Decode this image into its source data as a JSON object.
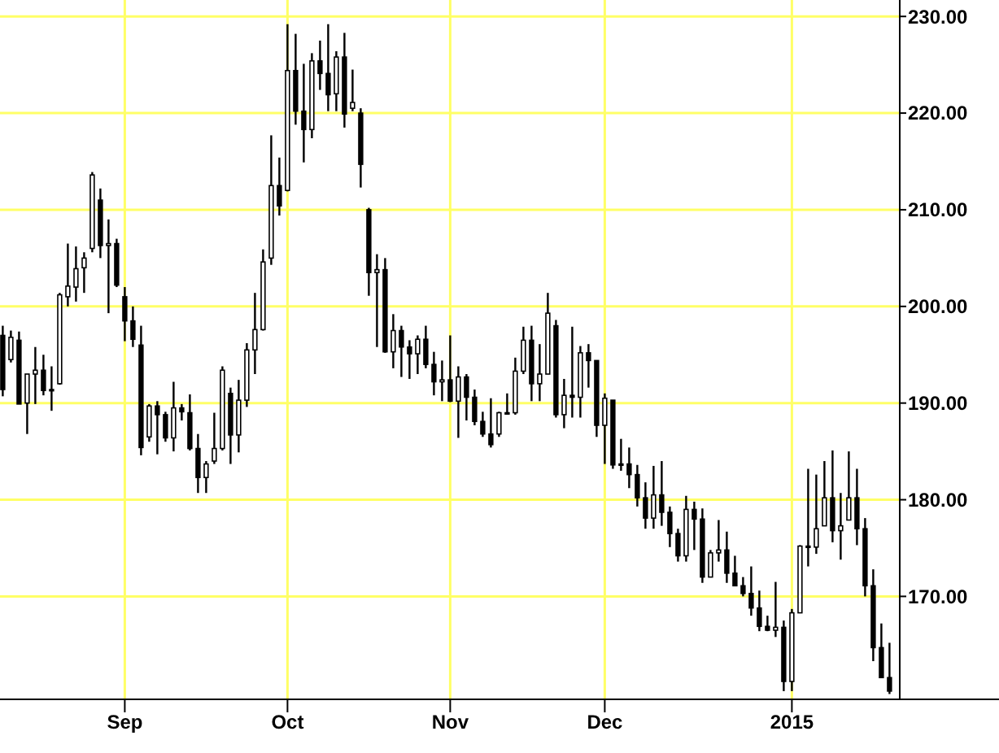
{
  "chart_data": {
    "type": "candlestick",
    "color": "#000000",
    "grid": true,
    "categories": [
      null,
      null,
      null,
      null,
      null,
      null,
      null,
      null,
      null,
      null,
      null,
      null,
      null,
      null,
      null,
      "Sep",
      null,
      null,
      null,
      null,
      null,
      null,
      null,
      null,
      null,
      null,
      null,
      null,
      null,
      null,
      null,
      null,
      null,
      null,
      null,
      "Oct",
      null,
      null,
      null,
      null,
      null,
      null,
      null,
      null,
      null,
      null,
      null,
      null,
      null,
      null,
      null,
      null,
      null,
      null,
      null,
      "Nov",
      null,
      null,
      null,
      null,
      null,
      null,
      null,
      null,
      null,
      null,
      null,
      null,
      null,
      null,
      null,
      null,
      null,
      null,
      "Dec",
      null,
      null,
      null,
      null,
      null,
      null,
      null,
      null,
      null,
      null,
      null,
      null,
      null,
      null,
      null,
      null,
      null,
      null,
      null,
      null,
      null,
      null,
      "2015",
      null,
      null,
      null,
      null,
      null,
      null,
      null,
      null,
      null,
      null,
      null,
      null
    ],
    "ohlc": [
      [
        197,
        198.0,
        190.7,
        191.4
      ],
      [
        194.5,
        197.5,
        194.2,
        196.8
      ],
      [
        196.5,
        197.4,
        189.9,
        189.9
      ],
      [
        190,
        193.0,
        186.8,
        193.0
      ],
      [
        193,
        195.8,
        189.9,
        193.4
      ],
      [
        193.4,
        195.0,
        190.8,
        191.3
      ],
      [
        191.3,
        193.8,
        189.2,
        191.4
      ],
      [
        192,
        201.4,
        191.9,
        201.2
      ],
      [
        201,
        206.5,
        200.0,
        202.1
      ],
      [
        202,
        206.2,
        200.5,
        203.9
      ],
      [
        204,
        205.6,
        201.4,
        205.0
      ],
      [
        206,
        213.9,
        205.6,
        213.6
      ],
      [
        211,
        212.2,
        205.0,
        206.3
      ],
      [
        206.3,
        209.0,
        199.3,
        206.5
      ],
      [
        206.5,
        207.0,
        202.0,
        202.2
      ],
      [
        201,
        202.0,
        196.4,
        198.5
      ],
      [
        198.5,
        200.0,
        195.8,
        196.6
      ],
      [
        196,
        198.0,
        184.6,
        185.4
      ],
      [
        186.5,
        189.9,
        186.0,
        189.7
      ],
      [
        189.7,
        190.2,
        184.7,
        188.8
      ],
      [
        188.8,
        189.1,
        186.0,
        186.4
      ],
      [
        186.4,
        192.2,
        185.0,
        189.5
      ],
      [
        189.5,
        189.9,
        188.2,
        189.1
      ],
      [
        189,
        190.9,
        185.1,
        185.3
      ],
      [
        185.3,
        186.8,
        180.7,
        182.3
      ],
      [
        182.3,
        184.0,
        180.7,
        183.7
      ],
      [
        184,
        189.0,
        183.7,
        185.3
      ],
      [
        185.3,
        193.8,
        185.1,
        193.4
      ],
      [
        191,
        191.6,
        183.7,
        186.7
      ],
      [
        186.7,
        192.4,
        184.9,
        190.3
      ],
      [
        190.3,
        196.2,
        189.6,
        195.5
      ],
      [
        195.5,
        201.4,
        193.0,
        197.6
      ],
      [
        197.6,
        205.9,
        197.5,
        204.6
      ],
      [
        205,
        217.7,
        204.3,
        212.5
      ],
      [
        212.5,
        215.4,
        209.4,
        210.4
      ],
      [
        212,
        229.2,
        211.9,
        224.4
      ],
      [
        224.4,
        228.2,
        218.8,
        220.2
      ],
      [
        220.2,
        225.1,
        214.9,
        218.3
      ],
      [
        218.3,
        226.2,
        217.4,
        225.4
      ],
      [
        225.4,
        227.5,
        222.4,
        224.1
      ],
      [
        224.1,
        229.2,
        220.2,
        221.9
      ],
      [
        222,
        226.4,
        220.2,
        225.8
      ],
      [
        225.8,
        228.3,
        218.5,
        219.9
      ],
      [
        220.5,
        224.5,
        220.2,
        221.1
      ],
      [
        220,
        220.5,
        212.3,
        214.7
      ],
      [
        210,
        210.2,
        201.1,
        203.5
      ],
      [
        203.5,
        205.4,
        195.8,
        203.8
      ],
      [
        203.8,
        205.0,
        195.2,
        195.3
      ],
      [
        195.3,
        199.2,
        193.6,
        197.5
      ],
      [
        197.5,
        198.0,
        192.7,
        195.8
      ],
      [
        195.8,
        196.5,
        192.5,
        195.1
      ],
      [
        195.1,
        197.0,
        193.0,
        196.6
      ],
      [
        196.6,
        198.0,
        193.6,
        194.0
      ],
      [
        194,
        195.3,
        190.8,
        192.2
      ],
      [
        192.2,
        194.4,
        190.2,
        192.4
      ],
      [
        192.4,
        197.0,
        190.1,
        190.2
      ],
      [
        190.2,
        193.8,
        186.4,
        192.7
      ],
      [
        192.7,
        193.0,
        188.2,
        190.6
      ],
      [
        190.6,
        191.4,
        187.7,
        188.1
      ],
      [
        188.1,
        189.1,
        186.5,
        186.8
      ],
      [
        186.8,
        190.5,
        185.4,
        185.7
      ],
      [
        186.8,
        189.1,
        186.5,
        189.0
      ],
      [
        189.0,
        191.0,
        188.8,
        189.0
      ],
      [
        189,
        194.7,
        188.8,
        193.3
      ],
      [
        193.3,
        197.9,
        193.0,
        196.5
      ],
      [
        196.5,
        198.0,
        190.2,
        192.0
      ],
      [
        192,
        196.1,
        190.2,
        193.0
      ],
      [
        193,
        201.4,
        193.0,
        199.3
      ],
      [
        198,
        198.6,
        188.5,
        188.8
      ],
      [
        188.8,
        192.5,
        187.4,
        190.8
      ],
      [
        190.8,
        197.9,
        188.5,
        190.6
      ],
      [
        190.6,
        195.9,
        188.5,
        195.2
      ],
      [
        195.2,
        196.1,
        191.6,
        194.4
      ],
      [
        194.4,
        194.4,
        186.5,
        187.7
      ],
      [
        187.7,
        191.0,
        183.7,
        190.5
      ],
      [
        190.3,
        190.3,
        183.2,
        183.6
      ],
      [
        183.6,
        186.3,
        183.0,
        183.7
      ],
      [
        183.7,
        185.4,
        181.2,
        182.6
      ],
      [
        182.6,
        183.6,
        179.3,
        180.2
      ],
      [
        180.2,
        181.8,
        177.0,
        178.1
      ],
      [
        178.1,
        183.5,
        177.0,
        180.5
      ],
      [
        180.5,
        184.0,
        177.3,
        178.7
      ],
      [
        178.7,
        179.3,
        175.1,
        176.5
      ],
      [
        176.5,
        177.0,
        173.6,
        174.2
      ],
      [
        174.2,
        180.4,
        173.6,
        179.0
      ],
      [
        179,
        179.8,
        174.8,
        178.0
      ],
      [
        178,
        179.1,
        171.4,
        172.0
      ],
      [
        172,
        174.8,
        172.0,
        174.5
      ],
      [
        174.5,
        177.9,
        173.6,
        174.8
      ],
      [
        174.8,
        176.7,
        171.4,
        172.4
      ],
      [
        172.4,
        174.2,
        171.1,
        171.1
      ],
      [
        171.1,
        172.0,
        170.0,
        170.3
      ],
      [
        170.3,
        173.1,
        168.0,
        168.8
      ],
      [
        168.8,
        170.6,
        166.4,
        166.9
      ],
      [
        166.9,
        168.0,
        166.4,
        166.5
      ],
      [
        166.5,
        171.5,
        165.8,
        166.8
      ],
      [
        166.8,
        167.5,
        160.2,
        161.2
      ],
      [
        161.2,
        168.7,
        160.2,
        168.3
      ],
      [
        168.3,
        175.3,
        168.3,
        175.2
      ],
      [
        175.2,
        183.2,
        173.1,
        175.1
      ],
      [
        175.1,
        182.6,
        174.4,
        177.0
      ],
      [
        177.3,
        184.0,
        177.3,
        180.2
      ],
      [
        180.2,
        185.1,
        175.6,
        176.8
      ],
      [
        176.8,
        180.7,
        173.8,
        177.3
      ],
      [
        177.9,
        185.0,
        177.9,
        180.2
      ],
      [
        180.2,
        183.2,
        175.3,
        177.0
      ],
      [
        177,
        178.1,
        170.0,
        171.1
      ],
      [
        171.1,
        172.8,
        163.3,
        164.7
      ],
      [
        164.7,
        167.2,
        161.6,
        161.6
      ],
      [
        161.6,
        165.2,
        159.9,
        160.2
      ]
    ],
    "ylim": [
      159.35,
      231.7
    ],
    "yticks": [
      {
        "value": 170,
        "label": "170.00"
      },
      {
        "value": 180,
        "label": "180.00"
      },
      {
        "value": 190,
        "label": "190.00"
      },
      {
        "value": 200,
        "label": "200.00"
      },
      {
        "value": 210,
        "label": "210.00"
      },
      {
        "value": 220,
        "label": "220.00"
      },
      {
        "value": 230,
        "label": "230.00"
      }
    ]
  }
}
